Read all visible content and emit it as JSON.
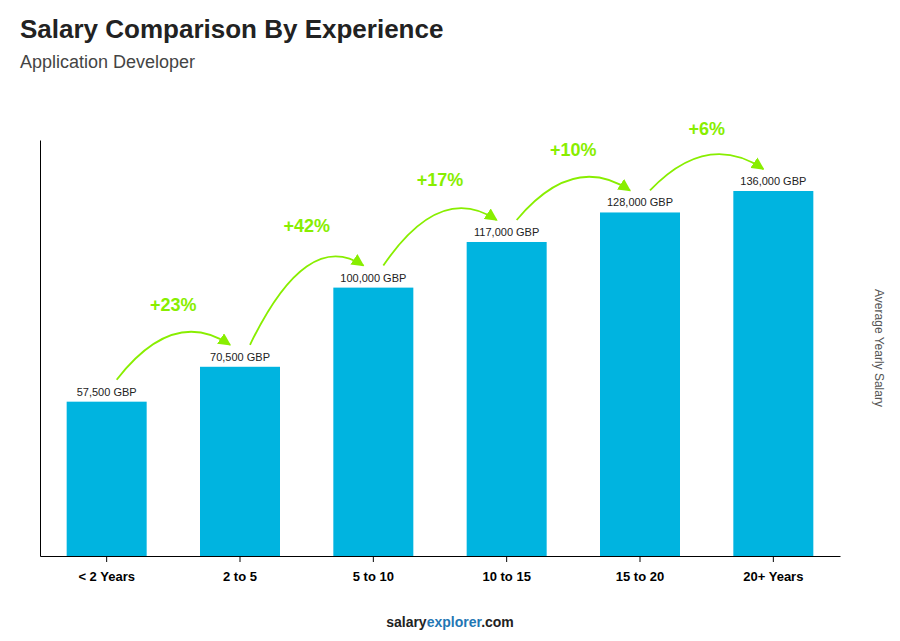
{
  "chart_data": {
    "type": "bar",
    "title": "Salary Comparison By Experience",
    "subtitle": "Application Developer",
    "ylabel": "Average Yearly Salary",
    "categories": [
      "< 2 Years",
      "2 to 5",
      "5 to 10",
      "10 to 15",
      "15 to 20",
      "20+ Years"
    ],
    "values": [
      57500,
      70500,
      100000,
      117000,
      128000,
      136000
    ],
    "value_labels": [
      "57,500 GBP",
      "70,500 GBP",
      "100,000 GBP",
      "117,000 GBP",
      "128,000 GBP",
      "136,000 GBP"
    ],
    "data_labels": true,
    "color": "#00b4e0",
    "ylim": [
      0,
      155000
    ],
    "tick_labels": "x",
    "grid": false,
    "annotations": [
      {
        "text": "+23%",
        "color": "#88ee00"
      },
      {
        "text": "+42%",
        "color": "#88ee00"
      },
      {
        "text": "+17%",
        "color": "#88ee00"
      },
      {
        "text": "+10%",
        "color": "#88ee00"
      },
      {
        "text": "+6%",
        "color": "#88ee00"
      }
    ],
    "footer": [
      "salary",
      "explorer",
      ".com"
    ]
  }
}
